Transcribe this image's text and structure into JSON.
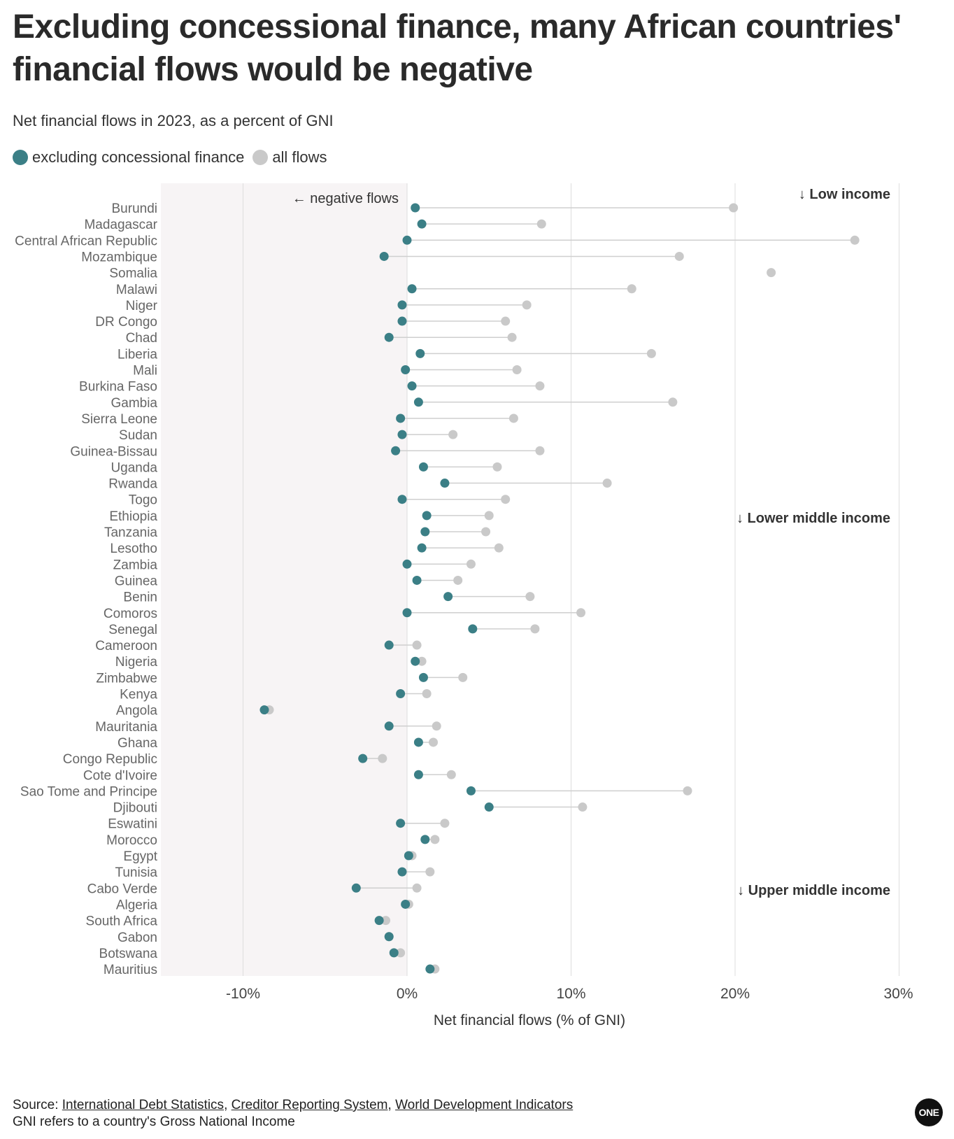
{
  "chart_data": {
    "type": "dumbbell",
    "title": "Excluding concessional finance, many African countries' financial flows would be negative",
    "subtitle": "Net financial flows in 2023, as a percent of GNI",
    "xlabel": "Net financial flows (% of GNI)",
    "xlim": [
      -15,
      30
    ],
    "x_ticks": [
      -10,
      0,
      10,
      20,
      30
    ],
    "x_tick_labels": [
      "-10%",
      "0%",
      "10%",
      "20%",
      "30%"
    ],
    "negative_region_label": "← negative flows",
    "series": [
      {
        "name": "excluding concessional finance",
        "color": "#3b7f86"
      },
      {
        "name": "all flows",
        "color": "#c9c9c9"
      }
    ],
    "groups": [
      {
        "label": "↓ Low income",
        "start_index": 0
      },
      {
        "label": "↓ Lower middle income",
        "start_index": 19
      },
      {
        "label": "↓ Upper middle income",
        "start_index": 42
      }
    ],
    "rows": [
      {
        "country": "Burundi",
        "excl": 0.5,
        "all": 19.9
      },
      {
        "country": "Madagascar",
        "excl": 0.9,
        "all": 8.2
      },
      {
        "country": "Central African Republic",
        "excl": 0.0,
        "all": 27.3
      },
      {
        "country": "Mozambique",
        "excl": -1.4,
        "all": 16.6
      },
      {
        "country": "Somalia",
        "excl": null,
        "all": 22.2
      },
      {
        "country": "Malawi",
        "excl": 0.3,
        "all": 13.7
      },
      {
        "country": "Niger",
        "excl": -0.3,
        "all": 7.3
      },
      {
        "country": "DR Congo",
        "excl": -0.3,
        "all": 6.0
      },
      {
        "country": "Chad",
        "excl": -1.1,
        "all": 6.4
      },
      {
        "country": "Liberia",
        "excl": 0.8,
        "all": 14.9
      },
      {
        "country": "Mali",
        "excl": -0.1,
        "all": 6.7
      },
      {
        "country": "Burkina Faso",
        "excl": 0.3,
        "all": 8.1
      },
      {
        "country": "Gambia",
        "excl": 0.7,
        "all": 16.2
      },
      {
        "country": "Sierra Leone",
        "excl": -0.4,
        "all": 6.5
      },
      {
        "country": "Sudan",
        "excl": -0.3,
        "all": 2.8
      },
      {
        "country": "Guinea-Bissau",
        "excl": -0.7,
        "all": 8.1
      },
      {
        "country": "Uganda",
        "excl": 1.0,
        "all": 5.5
      },
      {
        "country": "Rwanda",
        "excl": 2.3,
        "all": 12.2
      },
      {
        "country": "Togo",
        "excl": -0.3,
        "all": 6.0
      },
      {
        "country": "Ethiopia",
        "excl": 1.2,
        "all": 5.0
      },
      {
        "country": "Tanzania",
        "excl": 1.1,
        "all": 4.8
      },
      {
        "country": "Lesotho",
        "excl": 0.9,
        "all": 5.6
      },
      {
        "country": "Zambia",
        "excl": 0.0,
        "all": 3.9
      },
      {
        "country": "Guinea",
        "excl": 0.6,
        "all": 3.1
      },
      {
        "country": "Benin",
        "excl": 2.5,
        "all": 7.5
      },
      {
        "country": "Comoros",
        "excl": 0.0,
        "all": 10.6
      },
      {
        "country": "Senegal",
        "excl": 4.0,
        "all": 7.8
      },
      {
        "country": "Cameroon",
        "excl": -1.1,
        "all": 0.6
      },
      {
        "country": "Nigeria",
        "excl": 0.5,
        "all": 0.9
      },
      {
        "country": "Zimbabwe",
        "excl": 1.0,
        "all": 3.4
      },
      {
        "country": "Kenya",
        "excl": -0.4,
        "all": 1.2
      },
      {
        "country": "Angola",
        "excl": -8.7,
        "all": -8.4
      },
      {
        "country": "Mauritania",
        "excl": -1.1,
        "all": 1.8
      },
      {
        "country": "Ghana",
        "excl": 0.7,
        "all": 1.6
      },
      {
        "country": "Congo Republic",
        "excl": -2.7,
        "all": -1.5
      },
      {
        "country": "Cote d'Ivoire",
        "excl": 0.7,
        "all": 2.7
      },
      {
        "country": "Sao Tome and Principe",
        "excl": 3.9,
        "all": 17.1
      },
      {
        "country": "Djibouti",
        "excl": 5.0,
        "all": 10.7
      },
      {
        "country": "Eswatini",
        "excl": -0.4,
        "all": 2.3
      },
      {
        "country": "Morocco",
        "excl": 1.1,
        "all": 1.7
      },
      {
        "country": "Egypt",
        "excl": 0.1,
        "all": 0.3
      },
      {
        "country": "Tunisia",
        "excl": -0.3,
        "all": 1.4
      },
      {
        "country": "Cabo Verde",
        "excl": -3.1,
        "all": 0.6
      },
      {
        "country": "Algeria",
        "excl": -0.1,
        "all": 0.1
      },
      {
        "country": "South Africa",
        "excl": -1.7,
        "all": -1.3
      },
      {
        "country": "Gabon",
        "excl": -1.1,
        "all": -1.1
      },
      {
        "country": "Botswana",
        "excl": -0.8,
        "all": -0.4
      },
      {
        "country": "Mauritius",
        "excl": 1.4,
        "all": 1.7
      }
    ]
  },
  "footer": {
    "source_prefix": "Source: ",
    "links": [
      "International Debt Statistics",
      "Creditor Reporting System",
      "World Development Indicators"
    ],
    "separator": ", ",
    "note": "GNI refers to a country's Gross National Income"
  },
  "logo": {
    "text": "ONE"
  }
}
